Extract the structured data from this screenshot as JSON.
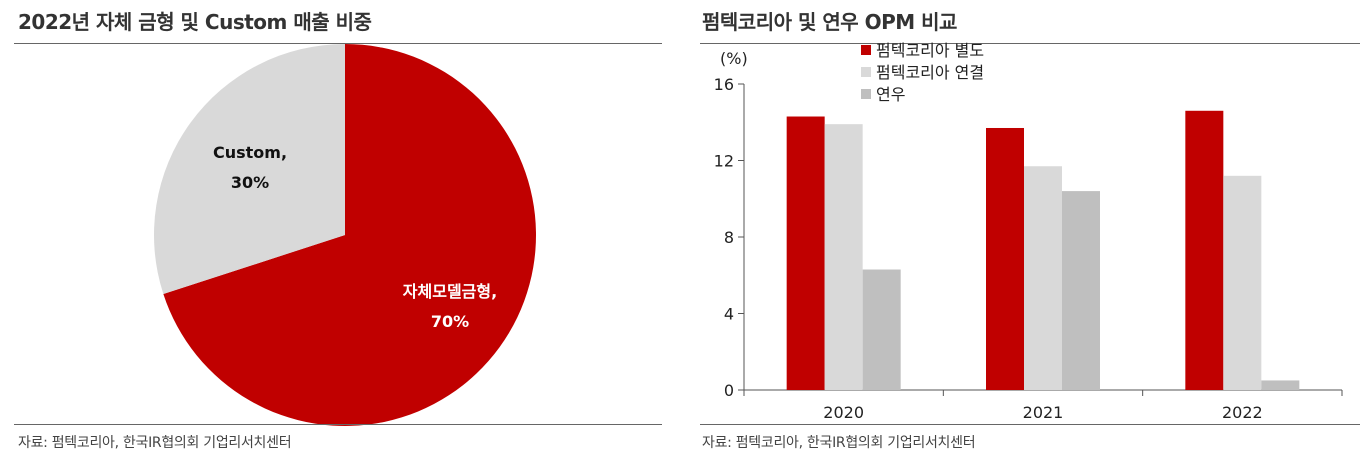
{
  "left_panel": {
    "title": "2022년 자체 금형 및 Custom 매출 비중",
    "source": "자료: 펌텍코리아, 한국IR협의회 기업리서치센터"
  },
  "right_panel": {
    "title": "펌텍코리아 및 연우 OPM 비교",
    "source": "자료: 펌텍코리아, 한국IR협의회 기업리서치센터"
  },
  "chart_data": [
    {
      "type": "pie",
      "title": "2022년 자체 금형 및 Custom 매출 비중",
      "slices": [
        {
          "label": "자체모델금형,",
          "pct_label": "70%",
          "value": 70,
          "color": "#c00000"
        },
        {
          "label": "Custom,",
          "pct_label": "30%",
          "value": 30,
          "color": "#d9d9d9"
        }
      ]
    },
    {
      "type": "bar",
      "title": "펌텍코리아 및 연우 OPM 비교",
      "ylabel": "(%)",
      "ylim": [
        0,
        16
      ],
      "yticks": [
        0,
        4,
        8,
        12,
        16
      ],
      "categories": [
        "2020",
        "2021",
        "2022"
      ],
      "legend_position": "top",
      "series": [
        {
          "name": "펌텍코리아 별도",
          "color": "#c00000",
          "values": [
            14.3,
            13.7,
            14.6
          ]
        },
        {
          "name": "펌텍코리아 연결",
          "color": "#d9d9d9",
          "values": [
            13.9,
            11.7,
            11.2
          ]
        },
        {
          "name": "연우",
          "color": "#bfbfbf",
          "values": [
            6.3,
            10.4,
            0.5
          ]
        }
      ]
    }
  ]
}
